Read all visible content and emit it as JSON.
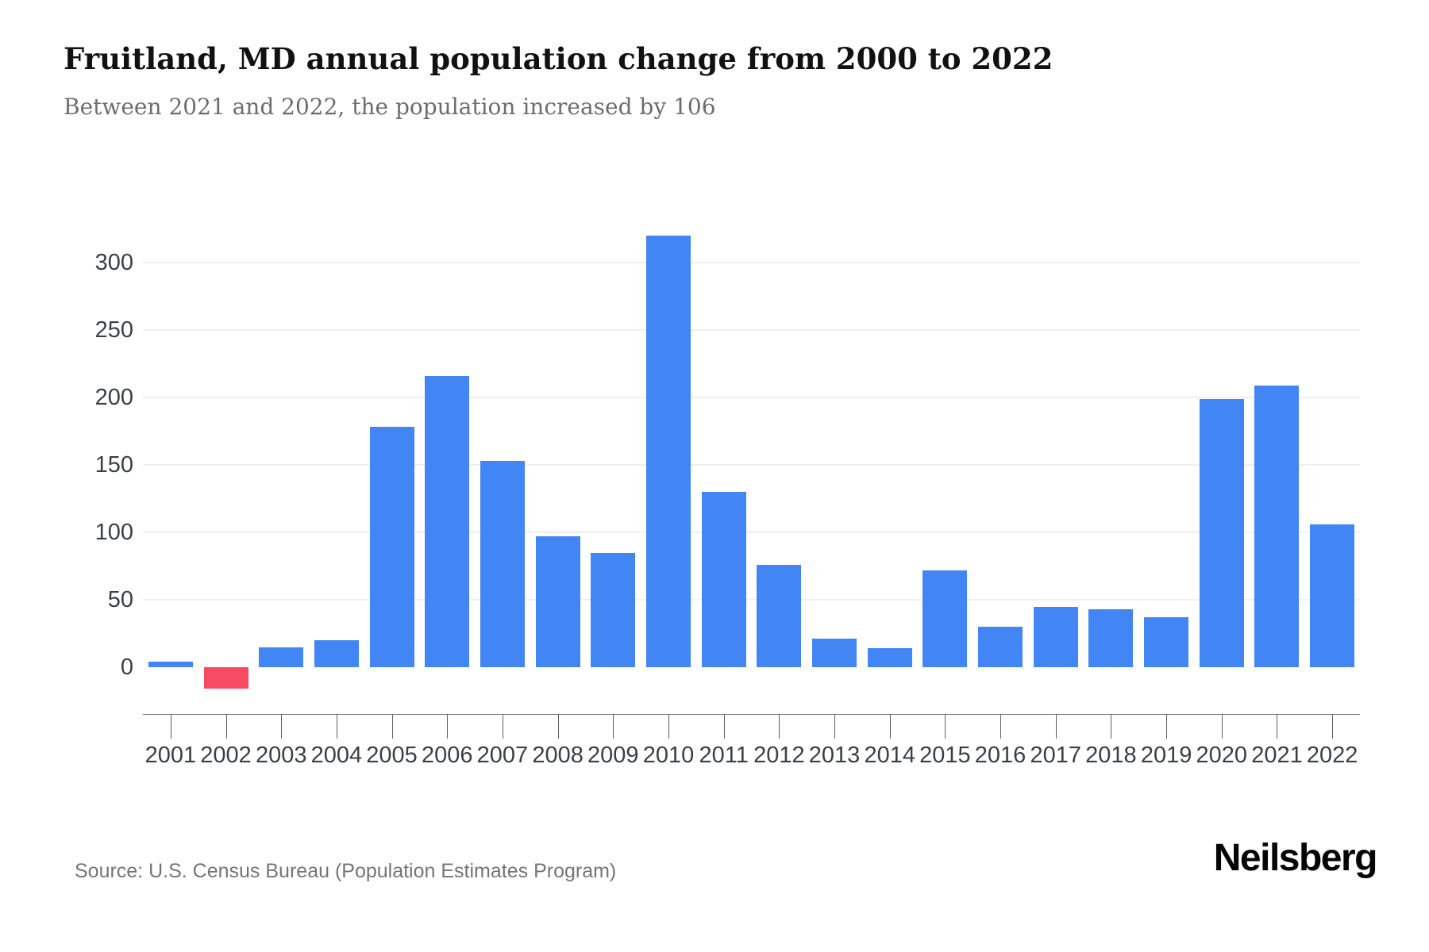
{
  "header": {
    "title": "Fruitland, MD annual population change from 2000 to 2022",
    "subtitle": "Between 2021 and 2022, the population increased by 106"
  },
  "footer": {
    "source": "Source: U.S. Census Bureau (Population Estimates Program)",
    "brand": "Neilsberg"
  },
  "colors": {
    "bar_positive": "#4285f4",
    "bar_negative": "#f94a63",
    "grid": "#efefef",
    "axis_line": "#757575",
    "tick": "#616161",
    "axis_text": "#3c4043",
    "title_text": "#111111",
    "subtitle_text": "#6d6d6d",
    "source_text": "#757575",
    "brand_text": "#050505"
  },
  "chart_data": {
    "type": "bar",
    "title": "Fruitland, MD annual population change from 2000 to 2022",
    "subtitle": "Between 2021 and 2022, the population increased by 106",
    "xlabel": "",
    "ylabel": "",
    "categories": [
      "2001",
      "2002",
      "2003",
      "2004",
      "2005",
      "2006",
      "2007",
      "2008",
      "2009",
      "2010",
      "2011",
      "2012",
      "2013",
      "2014",
      "2015",
      "2016",
      "2017",
      "2018",
      "2019",
      "2020",
      "2021",
      "2022"
    ],
    "values": [
      4,
      -16,
      15,
      20,
      178,
      216,
      153,
      97,
      85,
      320,
      130,
      76,
      21,
      14,
      72,
      30,
      45,
      43,
      37,
      199,
      209,
      106
    ],
    "yticks": [
      0,
      50,
      100,
      150,
      200,
      250,
      300
    ],
    "ylim": [
      -30,
      340
    ],
    "grid": true,
    "legend": "none"
  }
}
